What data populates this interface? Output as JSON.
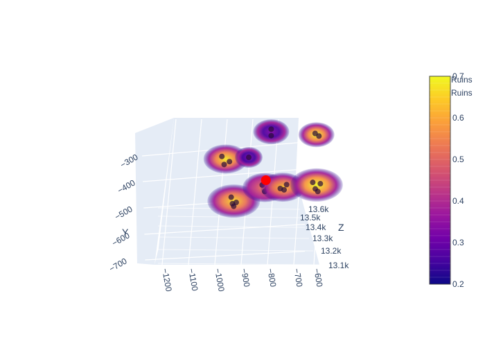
{
  "chart_data": {
    "type": "scatter3d",
    "axes": {
      "x": {
        "label": "",
        "ticks": [
          -1200,
          -1100,
          -1000,
          -900,
          -800,
          -700,
          -600
        ],
        "range": [
          -1230,
          -570
        ]
      },
      "y": {
        "label": "Y",
        "ticks": [
          -300,
          -400,
          -500,
          -600,
          -700
        ],
        "range": [
          -250,
          -720
        ]
      },
      "z": {
        "label": "Z",
        "ticks": [
          "13.1k",
          "13.2k",
          "13.3k",
          "13.4k",
          "13.5k",
          "13.6k"
        ],
        "range": [
          13050,
          13650
        ]
      }
    },
    "colorbar": {
      "min": 0.2,
      "max": 0.7,
      "ticks": [
        "0.2",
        "0.3",
        "0.4",
        "0.5",
        "0.6",
        "0.7"
      ],
      "legend_entries": [
        "Ruins",
        "Ruins"
      ],
      "colorscale": [
        "#0d0887",
        "#46039f",
        "#7201a8",
        "#9c179e",
        "#bd3786",
        "#d8576b",
        "#ed7953",
        "#fb9f3a",
        "#fdca26",
        "#f0f921"
      ]
    },
    "highlight": {
      "x": -872,
      "y": -468,
      "z": 13450,
      "color": "#ff0000"
    },
    "clusters": [
      {
        "x": -1055,
        "y": -410,
        "z": 13560,
        "density": 0.68,
        "points": [
          [
            -1070,
            -400,
            13560
          ],
          [
            -1040,
            -420,
            13560
          ],
          [
            -1060,
            -430,
            13555
          ]
        ]
      },
      {
        "x": -955,
        "y": -395,
        "z": 13520,
        "density": 0.32,
        "points": [
          [
            -955,
            -395,
            13520
          ]
        ]
      },
      {
        "x": -875,
        "y": -305,
        "z": 13560,
        "density": 0.33,
        "points": [
          [
            -875,
            -295,
            13560
          ],
          [
            -875,
            -320,
            13560
          ]
        ]
      },
      {
        "x": -705,
        "y": -325,
        "z": 13600,
        "density": 0.69,
        "points": [
          [
            -710,
            -320,
            13600
          ],
          [
            -695,
            -330,
            13600
          ]
        ]
      },
      {
        "x": -975,
        "y": -525,
        "z": 13340,
        "density": 0.66,
        "points": [
          [
            -985,
            -510,
            13340
          ],
          [
            -965,
            -530,
            13340
          ],
          [
            -975,
            -545,
            13340
          ],
          [
            -980,
            -535,
            13340
          ]
        ]
      },
      {
        "x": -870,
        "y": -490,
        "z": 13420,
        "density": 0.55,
        "points": [
          [
            -880,
            -480,
            13420
          ],
          [
            -860,
            -495,
            13420
          ],
          [
            -870,
            -505,
            13420
          ]
        ]
      },
      {
        "x": -805,
        "y": -495,
        "z": 13450,
        "density": 0.64,
        "points": [
          [
            -790,
            -485,
            13450
          ],
          [
            -815,
            -500,
            13450
          ],
          [
            -800,
            -505,
            13450
          ]
        ]
      },
      {
        "x": -665,
        "y": -480,
        "z": 13420,
        "density": 0.71,
        "points": [
          [
            -680,
            -470,
            13420
          ],
          [
            -650,
            -475,
            13420
          ],
          [
            -670,
            -495,
            13420
          ],
          [
            -660,
            -505,
            13420
          ]
        ]
      }
    ]
  }
}
